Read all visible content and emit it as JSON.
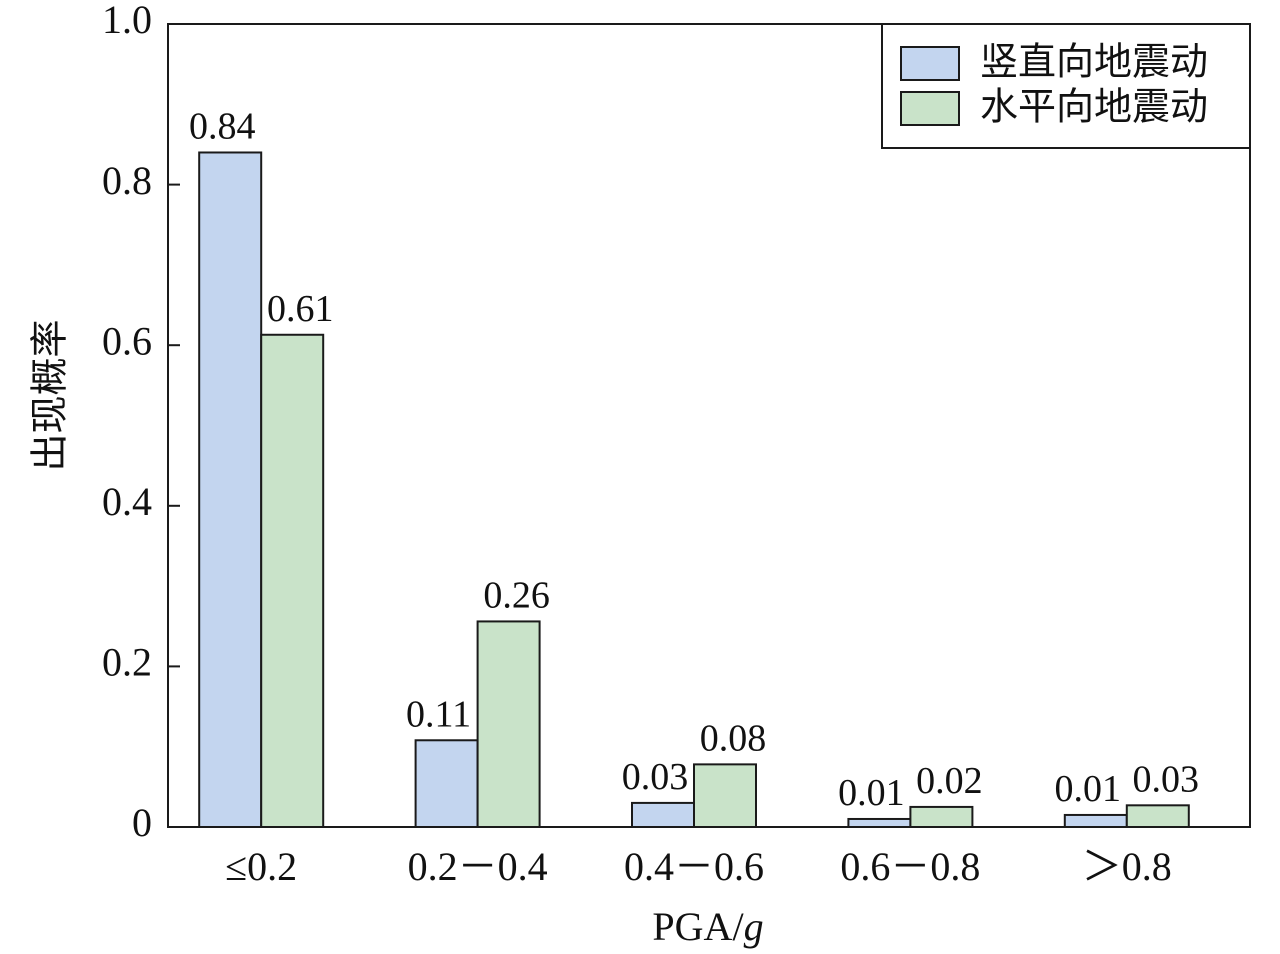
{
  "chart_data": {
    "type": "bar",
    "xlabel": "PGA/g",
    "xlabel_parts": {
      "main": "PGA/",
      "italic": "g"
    },
    "ylabel": "出现概率",
    "ylim": [
      0,
      1.0
    ],
    "yticks": [
      "0",
      "0.2",
      "0.4",
      "0.6",
      "0.8",
      "1.0"
    ],
    "ytick_values": [
      0,
      0.2,
      0.4,
      0.6,
      0.8,
      1.0
    ],
    "categories": [
      "≤0.2",
      "0.2－0.4",
      "0.4－0.6",
      "0.6－0.8",
      "＞0.8"
    ],
    "series": [
      {
        "name": "竖直向地震动",
        "color": "#c3d5ef",
        "values": [
          0.84,
          0.108,
          0.03,
          0.01,
          0.015
        ],
        "labels": [
          "0.84",
          "0.11",
          "0.03",
          "0.01",
          "0.01"
        ]
      },
      {
        "name": "水平向地震动",
        "color": "#c9e3c9",
        "values": [
          0.613,
          0.256,
          0.078,
          0.025,
          0.027
        ],
        "labels": [
          "0.61",
          "0.26",
          "0.08",
          "0.02",
          "0.03"
        ]
      }
    ],
    "legend_position": "top-right",
    "grid": false
  }
}
